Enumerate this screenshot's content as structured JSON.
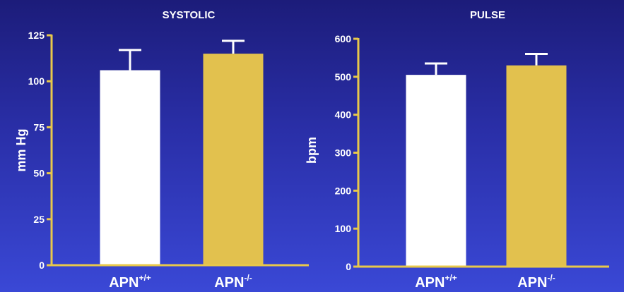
{
  "colors": {
    "axis": "#e8c84a",
    "bar_wildtype": "#ffffff",
    "bar_knockout": "#e2c14e",
    "error_bar": "#ffffff",
    "text": "#ffffff"
  },
  "chart_data": [
    {
      "type": "bar",
      "title": "SYSTOLIC",
      "ylabel": "mm Hg",
      "xlabel": "",
      "ylim": [
        0,
        125
      ],
      "yticks": [
        0,
        25,
        50,
        75,
        100,
        125
      ],
      "categories": [
        {
          "base": "APN",
          "sup": "+/+"
        },
        {
          "base": "APN",
          "sup": "-/-"
        }
      ],
      "values": [
        106,
        115
      ],
      "errors": [
        11,
        7
      ],
      "grid": false,
      "legend": "none"
    },
    {
      "type": "bar",
      "title": "PULSE",
      "ylabel": "bpm",
      "xlabel": "",
      "ylim": [
        0,
        600
      ],
      "yticks": [
        0,
        100,
        200,
        300,
        400,
        500,
        600
      ],
      "categories": [
        {
          "base": "APN",
          "sup": "+/+"
        },
        {
          "base": "APN",
          "sup": "-/-"
        }
      ],
      "values": [
        505,
        530
      ],
      "errors": [
        30,
        30
      ],
      "grid": false,
      "legend": "none"
    }
  ]
}
